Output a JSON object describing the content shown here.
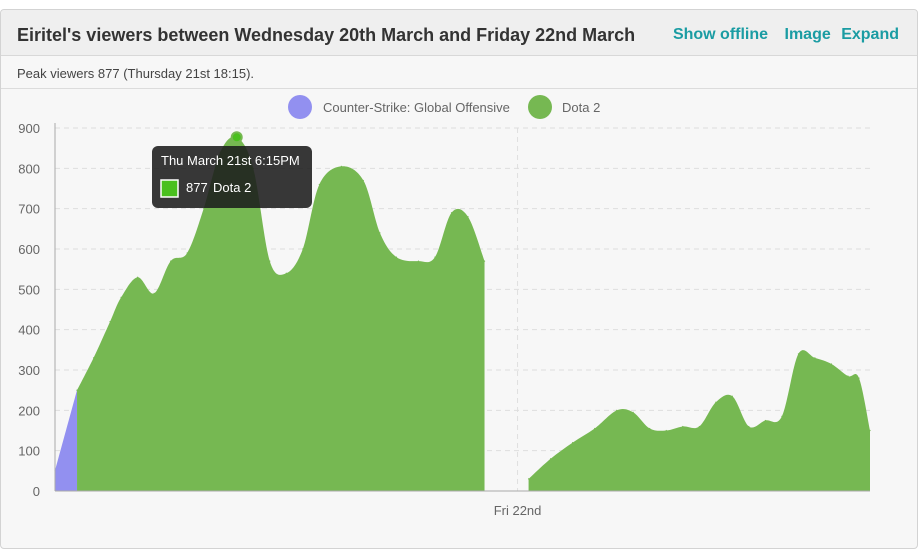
{
  "header": {
    "title": "Eiritel's viewers between Wednesday 20th March and Friday 22nd March",
    "show_offline": "Show offline",
    "image": "Image",
    "expand": "Expand"
  },
  "peak_text": "Peak viewers 877 (Thursday 21st 18:15).",
  "tooltip": {
    "title": "Thu March 21st 6:15PM",
    "value": "877",
    "series": "Dota 2"
  },
  "colors": {
    "csgo": "#9290f0",
    "dota": "#76b852",
    "accent": "#1a9ca3"
  },
  "chart_data": {
    "type": "area",
    "ylim": [
      0,
      900
    ],
    "yticks": [
      "0",
      "100",
      "200",
      "300",
      "400",
      "500",
      "600",
      "700",
      "800",
      "900"
    ],
    "xlabel": "",
    "ylabel": "",
    "x_tick_labels": [
      {
        "label": "Fri 22nd",
        "t": 48
      }
    ],
    "t_range": [
      6,
      80
    ],
    "legend": [
      "Counter-Strike: Global Offensive",
      "Dota 2"
    ],
    "series": [
      {
        "name": "Counter-Strike: Global Offensive",
        "color": "#9290f0",
        "points": [
          [
            6,
            50
          ],
          [
            8,
            250
          ]
        ]
      },
      {
        "name": "Dota 2",
        "color": "#76b852",
        "segments": [
          [
            [
              8,
              250
            ],
            [
              9.5,
              330
            ],
            [
              11,
              420
            ],
            [
              12,
              480
            ],
            [
              13.5,
              530
            ],
            [
              15,
              490
            ],
            [
              16.5,
              570
            ],
            [
              18,
              590
            ],
            [
              19.5,
              700
            ],
            [
              21,
              840
            ],
            [
              22.5,
              877
            ],
            [
              24,
              800
            ],
            [
              25.5,
              570
            ],
            [
              27,
              540
            ],
            [
              28.5,
              600
            ],
            [
              30,
              760
            ],
            [
              32,
              805
            ],
            [
              34,
              770
            ],
            [
              35.5,
              640
            ],
            [
              37,
              580
            ],
            [
              39,
              570
            ],
            [
              40.5,
              580
            ],
            [
              42,
              690
            ],
            [
              43.5,
              680
            ],
            [
              45,
              570
            ]
          ],
          [
            [
              49,
              30
            ],
            [
              51,
              80
            ],
            [
              53,
              120
            ],
            [
              55,
              155
            ],
            [
              57,
              200
            ],
            [
              58.5,
              195
            ],
            [
              60,
              155
            ],
            [
              61.5,
              150
            ],
            [
              63,
              160
            ],
            [
              64.5,
              160
            ],
            [
              66,
              220
            ],
            [
              67.5,
              235
            ],
            [
              69,
              160
            ],
            [
              70.5,
              175
            ],
            [
              72,
              185
            ],
            [
              73.5,
              340
            ],
            [
              75,
              330
            ],
            [
              76.5,
              315
            ],
            [
              78,
              285
            ],
            [
              79,
              280
            ],
            [
              80,
              150
            ]
          ]
        ]
      }
    ]
  }
}
